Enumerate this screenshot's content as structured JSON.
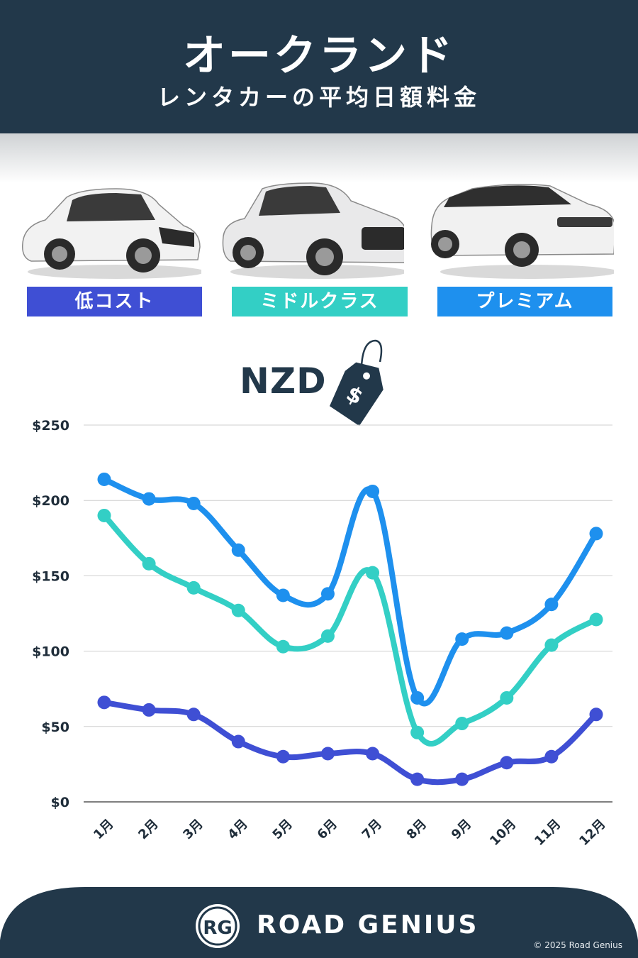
{
  "header": {
    "title": "オークランド",
    "subtitle": "レンタカーの平均日額料金"
  },
  "categories": [
    {
      "label": "低コスト",
      "color": "#3f4fd4"
    },
    {
      "label": "ミドルクラス",
      "color": "#33cfc5"
    },
    {
      "label": "プレミアム",
      "color": "#1e90ee"
    }
  ],
  "currency": {
    "label": "NZD",
    "symbol": "$"
  },
  "chart_data": {
    "type": "line",
    "x": [
      "1月",
      "2月",
      "3月",
      "4月",
      "5月",
      "6月",
      "7月",
      "8月",
      "9月",
      "10月",
      "11月",
      "12月"
    ],
    "yticks": [
      "$0",
      "$50",
      "$100",
      "$150",
      "$200",
      "$250"
    ],
    "ylim": [
      0,
      250
    ],
    "grid": true,
    "series": [
      {
        "name": "プレミアム",
        "color": "#1e90ee",
        "values": [
          214,
          201,
          198,
          167,
          137,
          138,
          206,
          69,
          108,
          112,
          131,
          178
        ]
      },
      {
        "name": "ミドルクラス",
        "color": "#33cfc5",
        "values": [
          190,
          158,
          142,
          127,
          103,
          110,
          152,
          46,
          52,
          69,
          104,
          121
        ]
      },
      {
        "name": "低コスト",
        "color": "#3f4fd4",
        "values": [
          66,
          61,
          58,
          40,
          30,
          32,
          32,
          15,
          15,
          26,
          30,
          58
        ]
      }
    ]
  },
  "footer": {
    "logo": "RG",
    "brand": "ROAD GENIUS",
    "copyright": "© 2025 Road Genius"
  }
}
